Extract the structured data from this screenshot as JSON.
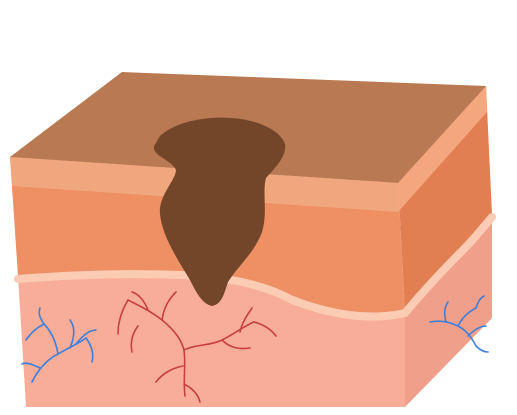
{
  "diagram": {
    "subject": "skin-cross-section-with-mole",
    "colors": {
      "background": "#ffffff",
      "epidermis_top": "#b97952",
      "epidermis_front_light": "#f1a77d",
      "epidermis_front_main": "#ee9064",
      "epidermis_side": "#e27f52",
      "epidermis_side_top_band": "#f4a67f",
      "basement_line": "#fbcbb4",
      "dermis_front": "#f8ad98",
      "dermis_side": "#f0a08a",
      "mole": "#734529",
      "blood_vessel_red": "#c7403f",
      "blood_vessel_blue": "#3f7fda"
    }
  }
}
